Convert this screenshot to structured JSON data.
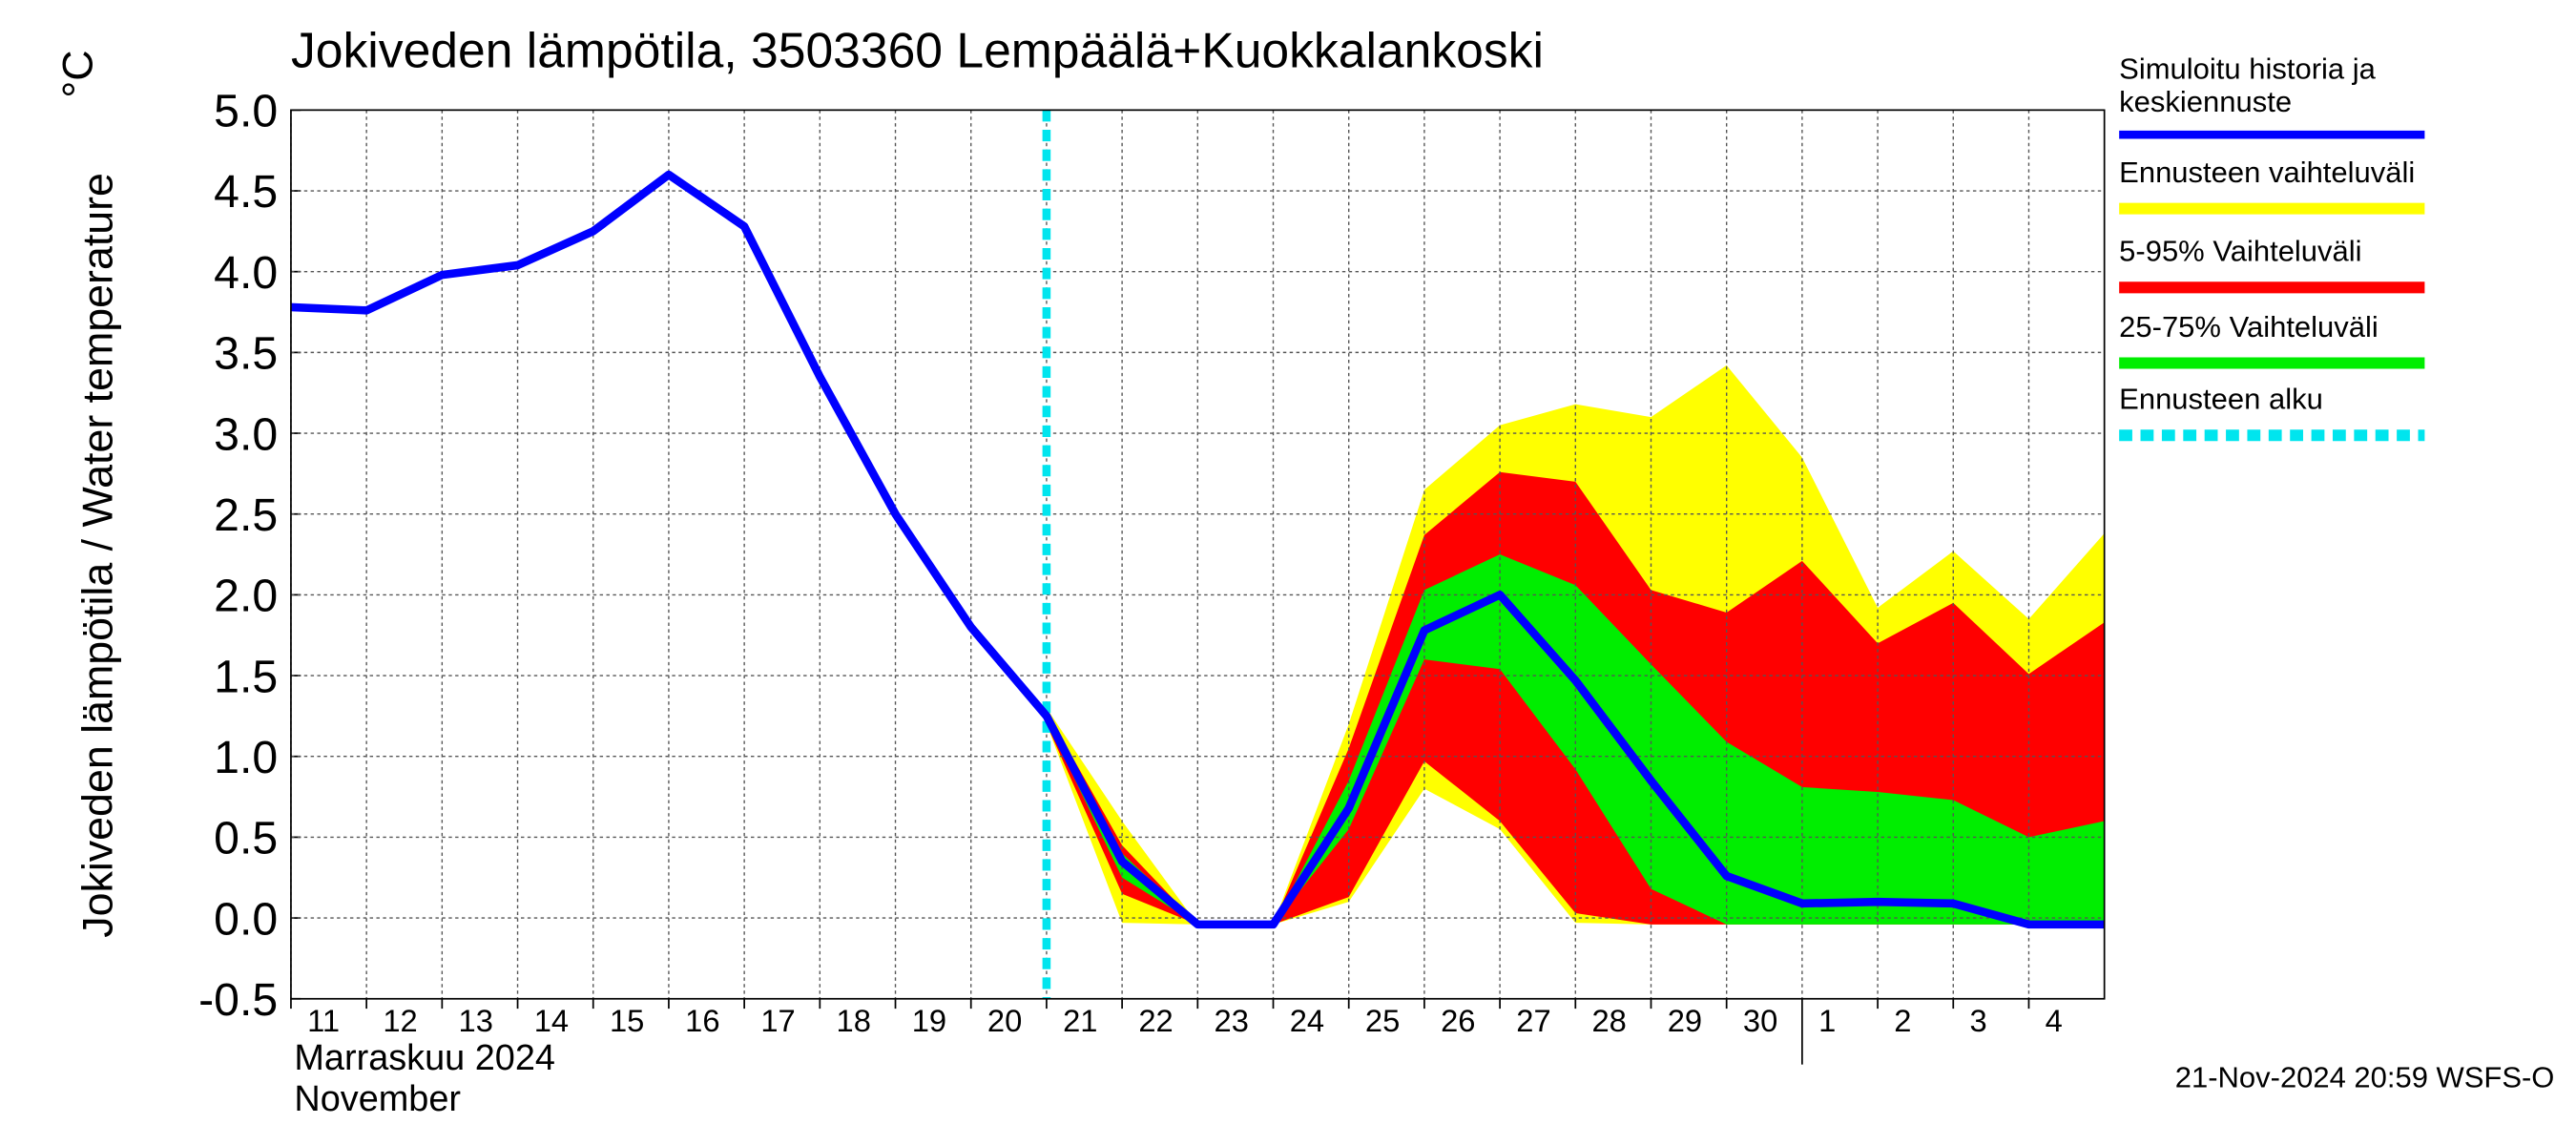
{
  "chart_data": {
    "type": "line",
    "title": "Jokiveden lämpötila, 3503360 Lempäälä+Kuokkalankoski",
    "y_label": "Jokiveden lämpötila / Water temperature",
    "y_unit": "°C",
    "x_label": [
      "Marraskuu 2024",
      "November"
    ],
    "footer": "21-Nov-2024 20:59 WSFS-O",
    "grid": true,
    "x": [
      "2024-11-11",
      "2024-11-12",
      "2024-11-13",
      "2024-11-14",
      "2024-11-15",
      "2024-11-16",
      "2024-11-17",
      "2024-11-18",
      "2024-11-19",
      "2024-11-20",
      "2024-11-21",
      "2024-11-22",
      "2024-11-23",
      "2024-11-24",
      "2024-11-25",
      "2024-11-26",
      "2024-11-27",
      "2024-11-28",
      "2024-11-29",
      "2024-11-30",
      "2024-12-01",
      "2024-12-02",
      "2024-12-03",
      "2024-12-04",
      "2024-12-05"
    ],
    "xlim": [
      "2024-11-11",
      "2024-12-05"
    ],
    "xticks": [
      {
        "value": "2024-11-11",
        "label": "11"
      },
      {
        "value": "2024-11-12",
        "label": "12"
      },
      {
        "value": "2024-11-13",
        "label": "13"
      },
      {
        "value": "2024-11-14",
        "label": "14"
      },
      {
        "value": "2024-11-15",
        "label": "15"
      },
      {
        "value": "2024-11-16",
        "label": "16"
      },
      {
        "value": "2024-11-17",
        "label": "17"
      },
      {
        "value": "2024-11-18",
        "label": "18"
      },
      {
        "value": "2024-11-19",
        "label": "19"
      },
      {
        "value": "2024-11-20",
        "label": "20"
      },
      {
        "value": "2024-11-21",
        "label": "21"
      },
      {
        "value": "2024-11-22",
        "label": "22"
      },
      {
        "value": "2024-11-23",
        "label": "23"
      },
      {
        "value": "2024-11-24",
        "label": "24"
      },
      {
        "value": "2024-11-25",
        "label": "25"
      },
      {
        "value": "2024-11-26",
        "label": "26"
      },
      {
        "value": "2024-11-27",
        "label": "27"
      },
      {
        "value": "2024-11-28",
        "label": "28"
      },
      {
        "value": "2024-11-29",
        "label": "29"
      },
      {
        "value": "2024-11-30",
        "label": "30"
      },
      {
        "value": "2024-12-01",
        "label": "1"
      },
      {
        "value": "2024-12-02",
        "label": "2"
      },
      {
        "value": "2024-12-03",
        "label": "3"
      },
      {
        "value": "2024-12-04",
        "label": "4"
      }
    ],
    "ylim": [
      -0.5,
      5
    ],
    "yticks": [
      -0.5,
      {
        "value": 0,
        "label": "0.0"
      },
      0.5,
      {
        "value": 1,
        "label": "1.0"
      },
      1.5,
      {
        "value": 2,
        "label": "2.0"
      },
      2.5,
      {
        "value": 3,
        "label": "3.0"
      },
      3.5,
      {
        "value": 4,
        "label": "4.0"
      },
      4.5,
      {
        "value": 5,
        "label": "5.0"
      }
    ],
    "series": [
      {
        "name": "Simuloitu historia ja keskiennuste",
        "color": "#0000ff",
        "values": [
          3.78,
          3.76,
          3.98,
          4.04,
          4.25,
          4.6,
          4.28,
          3.35,
          2.5,
          1.8,
          1.25,
          0.35,
          -0.04,
          -0.04,
          0.68,
          1.78,
          2.0,
          1.47,
          0.85,
          0.26,
          0.09,
          0.1,
          0.09,
          -0.04,
          -0.04
        ]
      },
      {
        "name": "Ennusteen vaihteluväli",
        "color": "#ffff00",
        "upper": [
          null,
          null,
          null,
          null,
          null,
          null,
          null,
          null,
          null,
          null,
          1.3,
          0.6,
          -0.04,
          -0.04,
          1.2,
          2.65,
          3.05,
          3.18,
          3.1,
          3.42,
          2.85,
          1.92,
          2.27,
          1.85,
          2.38
        ],
        "lower": [
          null,
          null,
          null,
          null,
          null,
          null,
          null,
          null,
          null,
          null,
          1.2,
          -0.03,
          -0.04,
          -0.04,
          0.1,
          0.8,
          0.55,
          -0.03,
          -0.04,
          -0.04,
          -0.04,
          -0.04,
          -0.04,
          -0.04,
          -0.04
        ]
      },
      {
        "name": "5-95% Vaihteluväli",
        "color": "#ff0000",
        "upper": [
          null,
          null,
          null,
          null,
          null,
          null,
          null,
          null,
          null,
          null,
          1.28,
          0.45,
          -0.04,
          -0.04,
          1.05,
          2.37,
          2.76,
          2.7,
          2.03,
          1.89,
          2.21,
          1.7,
          1.95,
          1.51,
          1.83
        ],
        "lower": [
          null,
          null,
          null,
          null,
          null,
          null,
          null,
          null,
          null,
          null,
          1.2,
          0.15,
          -0.04,
          -0.04,
          0.13,
          0.97,
          0.6,
          0.03,
          -0.04,
          -0.04,
          -0.04,
          -0.04,
          -0.04,
          -0.04,
          -0.04
        ]
      },
      {
        "name": "25-75% Vaihteluväli",
        "color": "#00ee00",
        "upper": [
          null,
          null,
          null,
          null,
          null,
          null,
          null,
          null,
          null,
          null,
          1.26,
          0.4,
          -0.04,
          -0.04,
          0.85,
          2.03,
          2.25,
          2.06,
          1.57,
          1.09,
          0.81,
          0.78,
          0.73,
          0.5,
          0.6
        ],
        "lower": [
          null,
          null,
          null,
          null,
          null,
          null,
          null,
          null,
          null,
          null,
          1.22,
          0.25,
          -0.04,
          -0.04,
          0.55,
          1.6,
          1.54,
          0.92,
          0.18,
          -0.04,
          -0.04,
          -0.04,
          -0.04,
          -0.04,
          -0.04
        ]
      }
    ],
    "forecast_start": {
      "name": "Ennusteen alku",
      "color": "#00e5ee",
      "x": "2024-11-21"
    }
  }
}
